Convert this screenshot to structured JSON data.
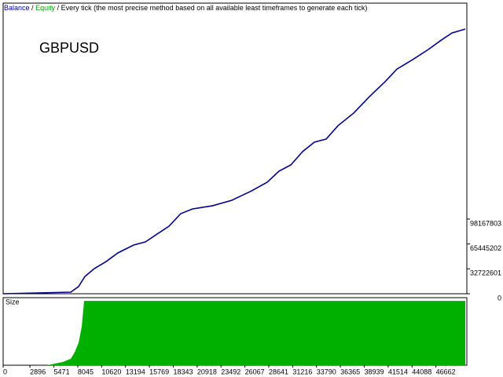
{
  "header": {
    "balance": "Balance",
    "separator": "/",
    "equity": "Equity",
    "method": "Every tick (the most precise method based on all available least timeframes to generate each tick)",
    "balance_color": "#0000a0",
    "equity_color": "#00a000"
  },
  "chart_data": [
    {
      "type": "line",
      "annotation": "GBPUSD",
      "annotation_color": "#1e9bd7",
      "x": [
        0,
        7289,
        8136,
        8814,
        9831,
        11102,
        12374,
        14069,
        15340,
        16611,
        17882,
        19154,
        20425,
        22544,
        24662,
        26781,
        28476,
        29747,
        31019,
        32290,
        33561,
        34832,
        36104,
        37799,
        39494,
        41189,
        42460,
        44155,
        45850,
        47121,
        48392,
        49833
      ],
      "series": [
        {
          "name": "Balance",
          "color": "#00008b",
          "values": [
            0,
            2060000,
            9500000,
            22700000,
            33000000,
            42300000,
            53700000,
            64000000,
            68100000,
            78500000,
            88800000,
            105300000,
            111500000,
            115600000,
            122900000,
            135200000,
            146600000,
            161100000,
            169300000,
            186900000,
            199300000,
            203400000,
            220900000,
            237500000,
            259100000,
            278800000,
            295300000,
            307700000,
            321100000,
            332400000,
            342800000,
            347900000
          ]
        }
      ],
      "xlim": [
        0,
        50000
      ],
      "ylim": [
        0,
        382000000
      ],
      "yticks": [
        0,
        32722601,
        65445202,
        98167803
      ]
    },
    {
      "type": "area",
      "label": "Size",
      "x": [
        0,
        4746,
        6441,
        7289,
        7712,
        8136,
        8475,
        8729,
        49833
      ],
      "series": [
        {
          "color": "#00b000",
          "values": [
            0,
            0,
            0.05,
            0.1,
            0.2,
            0.35,
            0.6,
            1.0,
            1.0
          ]
        }
      ],
      "xlim": [
        0,
        50000
      ],
      "ylim": [
        0,
        1.05
      ],
      "xticks": [
        0,
        2896,
        5471,
        8045,
        10620,
        13194,
        15769,
        18343,
        20918,
        23492,
        26067,
        28641,
        31216,
        33790,
        36365,
        38939,
        41514,
        44088,
        46662
      ]
    }
  ]
}
